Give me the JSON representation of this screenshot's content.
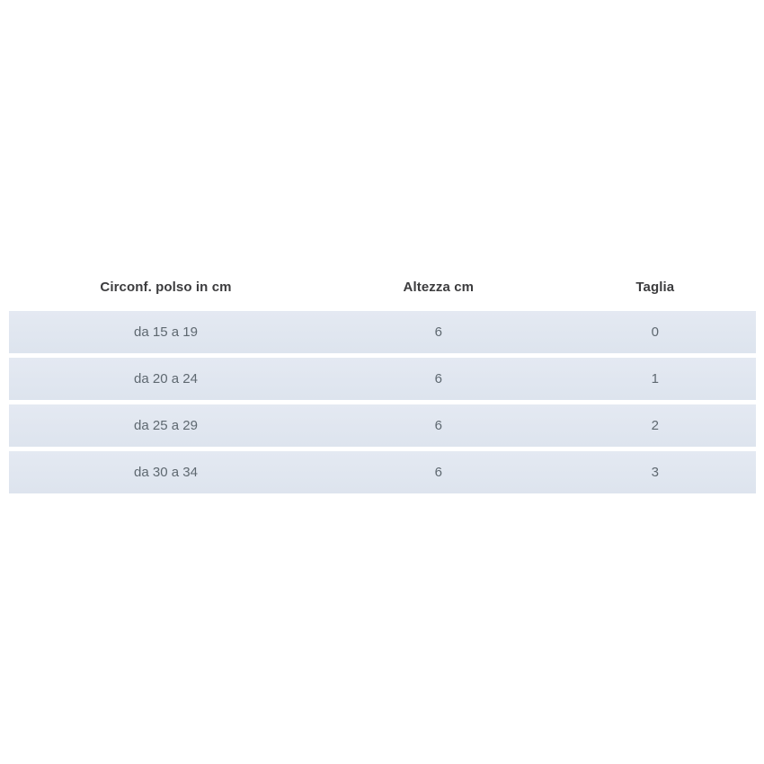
{
  "page": {
    "background_color": "#ffffff"
  },
  "colors": {
    "row_background": "#dfe5ee",
    "row_gradient_top": "#e4e9f2",
    "row_gradient_bottom": "#dde4ee",
    "header_text": "#3c3c3e",
    "cell_text": "#5e6870"
  },
  "table": {
    "columns": [
      {
        "label": "Circonf. polso in cm"
      },
      {
        "label": "Altezza cm"
      },
      {
        "label": "Taglia"
      }
    ],
    "rows": [
      {
        "circonferenza": "da 15 a 19",
        "altezza": "6",
        "taglia": "0"
      },
      {
        "circonferenza": "da 20 a 24",
        "altezza": "6",
        "taglia": "1"
      },
      {
        "circonferenza": "da 25 a 29",
        "altezza": "6",
        "taglia": "2"
      },
      {
        "circonferenza": "da 30 a 34",
        "altezza": "6",
        "taglia": "3"
      }
    ]
  },
  "chart_data": {
    "type": "table",
    "title": "",
    "columns": [
      "Circonf. polso in cm",
      "Altezza cm",
      "Taglia"
    ],
    "rows": [
      [
        "da 15 a 19",
        "6",
        "0"
      ],
      [
        "da 20 a 24",
        "6",
        "1"
      ],
      [
        "da 25 a 29",
        "6",
        "2"
      ],
      [
        "da 30 a 34",
        "6",
        "3"
      ]
    ]
  }
}
